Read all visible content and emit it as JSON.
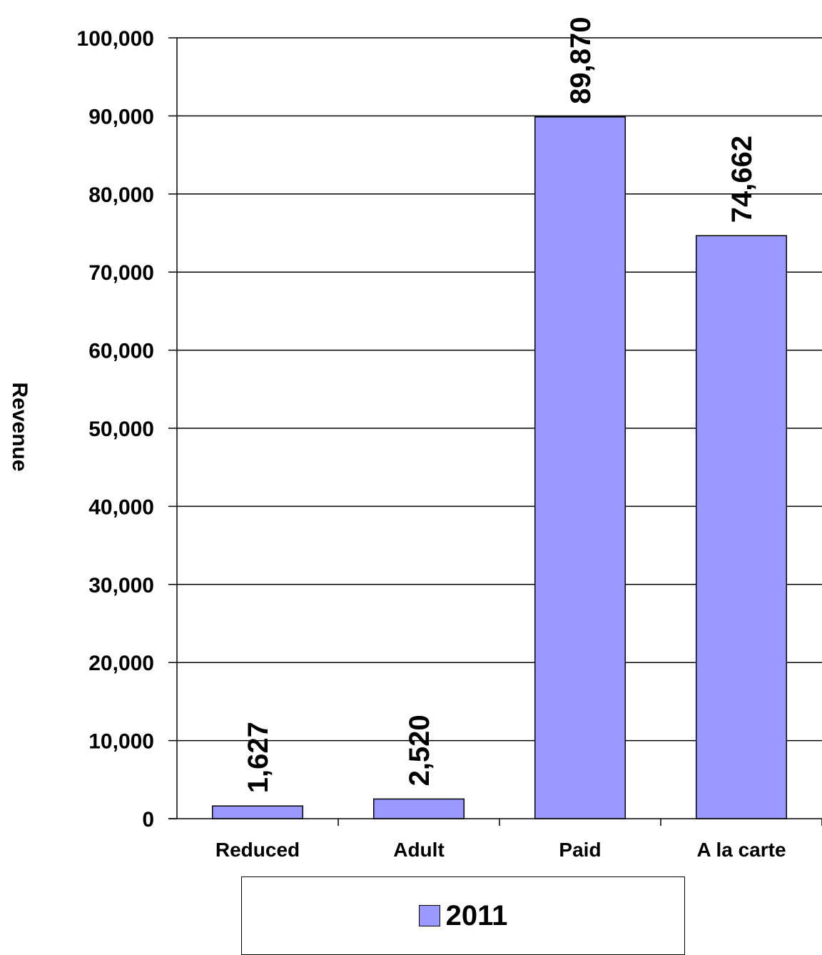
{
  "chart_data": {
    "type": "bar",
    "categories": [
      "Reduced",
      "Adult",
      "Paid",
      "A la carte"
    ],
    "series": [
      {
        "name": "2011",
        "values": [
          1627,
          2520,
          89870,
          74662
        ]
      }
    ],
    "data_labels": [
      "1,627",
      "2,520",
      "89,870",
      "74,662"
    ],
    "title": "",
    "xlabel": "",
    "ylabel": "Revenue",
    "ylim": [
      0,
      100000
    ],
    "yticks": [
      0,
      10000,
      20000,
      30000,
      40000,
      50000,
      60000,
      70000,
      80000,
      90000,
      100000
    ],
    "ytick_labels": [
      "0",
      "10,000",
      "20,000",
      "30,000",
      "40,000",
      "50,000",
      "60,000",
      "70,000",
      "80,000",
      "90,000",
      "100,000"
    ],
    "grid": true,
    "legend_position": "bottom",
    "bar_color": "#9999ff",
    "edge_color": "#000000"
  }
}
